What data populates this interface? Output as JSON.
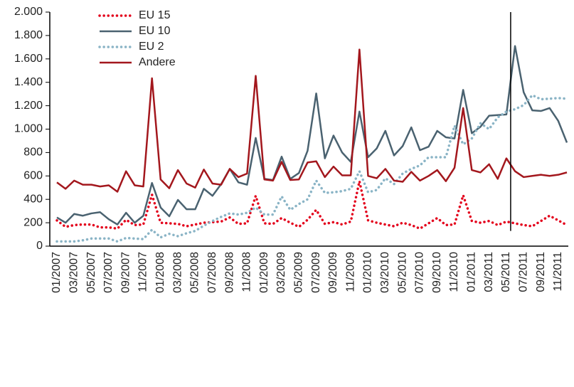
{
  "chart_data": {
    "type": "line",
    "categories": [
      "01/2007",
      null,
      "03/2007",
      null,
      "05/2007",
      null,
      "07/2007",
      null,
      "09/2007",
      null,
      "11/2007",
      null,
      "01/2008",
      null,
      "03/2008",
      null,
      "05/2008",
      null,
      "07/2008",
      null,
      "09/2008",
      null,
      "11/2008",
      null,
      "01/2009",
      null,
      "03/2009",
      null,
      "05/2009",
      null,
      "07/2009",
      null,
      "09/2009",
      null,
      "11/2009",
      null,
      "01/2010",
      null,
      "03/2010",
      null,
      "05/2010",
      null,
      "07/2010",
      null,
      "09/2010",
      null,
      "11/2010",
      null,
      "01/2011",
      null,
      "03/2011",
      null,
      "05/2011",
      null,
      "07/2011",
      null,
      "09/2011",
      null,
      "11/2011",
      null
    ],
    "series": [
      {
        "name": "EU 15",
        "color": "#e3001b",
        "dash": "dotted",
        "values": [
          220,
          165,
          180,
          185,
          185,
          160,
          160,
          150,
          225,
          180,
          185,
          440,
          200,
          195,
          190,
          170,
          185,
          200,
          205,
          210,
          245,
          190,
          195,
          430,
          195,
          190,
          240,
          200,
          165,
          225,
          310,
          190,
          205,
          185,
          210,
          555,
          220,
          200,
          185,
          170,
          200,
          180,
          150,
          195,
          240,
          180,
          185,
          435,
          215,
          200,
          215,
          180,
          210,
          195,
          180,
          170,
          215,
          260,
          220,
          180
        ]
      },
      {
        "name": "EU 10",
        "color": "#4a6270",
        "dash": "solid",
        "values": [
          245,
          200,
          275,
          260,
          280,
          290,
          230,
          185,
          285,
          200,
          260,
          540,
          330,
          255,
          395,
          315,
          315,
          490,
          430,
          530,
          660,
          545,
          525,
          925,
          575,
          565,
          765,
          575,
          625,
          815,
          1305,
          750,
          945,
          800,
          720,
          1150,
          760,
          835,
          985,
          775,
          855,
          1015,
          820,
          850,
          985,
          930,
          920,
          1335,
          965,
          1020,
          1115,
          1120,
          1125,
          1710,
          1315,
          1160,
          1155,
          1180,
          1070,
          885
        ]
      },
      {
        "name": "EU 2",
        "color": "#8ab4c6",
        "dash": "dotted",
        "values": [
          40,
          40,
          40,
          50,
          65,
          65,
          65,
          40,
          70,
          65,
          60,
          140,
          75,
          105,
          85,
          110,
          130,
          175,
          215,
          250,
          280,
          270,
          285,
          330,
          270,
          270,
          425,
          310,
          360,
          400,
          560,
          455,
          460,
          470,
          490,
          640,
          460,
          480,
          580,
          530,
          620,
          660,
          690,
          760,
          760,
          760,
          1030,
          870,
          920,
          1050,
          1000,
          1100,
          1150,
          1170,
          1205,
          1290,
          1255,
          1260,
          1265,
          1260
        ]
      },
      {
        "name": "Andere",
        "color": "#a3171d",
        "dash": "solid",
        "values": [
          545,
          490,
          560,
          525,
          525,
          510,
          520,
          465,
          640,
          520,
          510,
          1435,
          570,
          495,
          650,
          535,
          500,
          655,
          535,
          525,
          660,
          590,
          620,
          1455,
          570,
          560,
          720,
          565,
          570,
          715,
          725,
          590,
          680,
          605,
          605,
          1680,
          600,
          580,
          660,
          560,
          550,
          635,
          560,
          600,
          650,
          555,
          670,
          1180,
          650,
          630,
          700,
          575,
          750,
          640,
          590,
          600,
          610,
          600,
          610,
          630
        ]
      }
    ],
    "ylim": [
      0,
      2000
    ],
    "yticks": [
      0,
      200,
      400,
      600,
      800,
      {
        "value": 1000,
        "label": "1.000"
      },
      {
        "value": 1200,
        "label": "1.200"
      },
      {
        "value": 1400,
        "label": "1.400"
      },
      {
        "value": 1600,
        "label": "1.600"
      },
      {
        "value": 1800,
        "label": "1.800"
      },
      {
        "value": 2000,
        "label": "2.000"
      }
    ],
    "reference_line": "05/2011",
    "legend": "top-left"
  }
}
